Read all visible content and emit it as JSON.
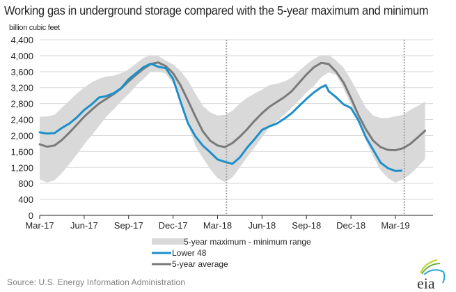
{
  "title": "Working gas in underground  storage compared with the 5-year maximum and minimum",
  "units_label": "billion cubic feet",
  "source": "Source:  U.S. Energy Information Administration",
  "logo_text": "eia",
  "colors": {
    "lower48": "#1d8fc9",
    "average": "#7a7a7a",
    "band": "#d9d9d9",
    "grid": "#d9d9d9",
    "divider": "#a6a6a6"
  },
  "chart_data": {
    "type": "line",
    "title": "Working gas in underground  storage compared with the 5-year maximum and minimum",
    "xlabel": "",
    "ylabel": "billion cubic feet",
    "ylim": [
      0,
      4400
    ],
    "yticks": [
      0,
      400,
      800,
      1200,
      1600,
      2000,
      2400,
      2800,
      3200,
      3600,
      4000,
      4400
    ],
    "ytick_labels": [
      "0",
      "400",
      "800",
      "1,200",
      "1,600",
      "2,000",
      "2,400",
      "2,800",
      "3,200",
      "3,600",
      "4,000",
      "4,400"
    ],
    "x_unit": "months since Mar-17",
    "xlim": [
      0,
      26.5
    ],
    "xticks": [
      0,
      3,
      6,
      9,
      12,
      15,
      18,
      21,
      24
    ],
    "xtick_labels": [
      "Mar-17",
      "Jun-17",
      "Sep-17",
      "Dec-17",
      "Mar-18",
      "Jun-18",
      "Sep-18",
      "Dec-18",
      "Mar-19"
    ],
    "grid": true,
    "legend_position": "bottom-center",
    "dividers": [
      12.6,
      24.6
    ],
    "band": {
      "name": "5-year maximum - minimum range",
      "x": [
        0,
        0.5,
        1,
        1.5,
        2,
        2.5,
        3,
        3.5,
        4,
        4.5,
        5,
        5.5,
        6,
        6.5,
        7,
        7.5,
        8,
        8.5,
        9,
        9.5,
        10,
        10.5,
        11,
        11.5,
        12,
        12.5,
        13,
        13.5,
        14,
        14.5,
        15,
        15.5,
        16,
        16.5,
        17,
        17.5,
        18,
        18.5,
        19,
        19.5,
        20,
        20.5,
        21,
        21.5,
        22,
        22.5,
        23,
        23.5,
        24,
        24.5,
        25,
        25.5,
        26
      ],
      "upper": [
        2470,
        2480,
        2520,
        2700,
        2870,
        3050,
        3200,
        3330,
        3420,
        3480,
        3500,
        3560,
        3660,
        3800,
        3940,
        4010,
        3990,
        3880,
        3780,
        3620,
        3380,
        3050,
        2750,
        2580,
        2500,
        2520,
        2620,
        2800,
        2950,
        3050,
        3150,
        3260,
        3300,
        3350,
        3450,
        3620,
        3780,
        3920,
        4010,
        4010,
        3880,
        3700,
        3400,
        3050,
        2700,
        2500,
        2440,
        2440,
        2480,
        2520,
        2640,
        2740,
        2850
      ],
      "lower": [
        900,
        820,
        880,
        1060,
        1280,
        1520,
        1780,
        2000,
        2240,
        2470,
        2660,
        2860,
        3040,
        3240,
        3420,
        3600,
        3610,
        3550,
        3300,
        2900,
        2300,
        1750,
        1440,
        1160,
        930,
        830,
        950,
        1200,
        1460,
        1700,
        1960,
        2200,
        2360,
        2520,
        2700,
        2880,
        3080,
        3240,
        3460,
        3580,
        3520,
        3180,
        2780,
        2320,
        1880,
        1470,
        1130,
        930,
        820,
        900,
        1030,
        1210,
        1410
      ]
    },
    "series": [
      {
        "name": "Lower 48",
        "x": [
          0,
          0.5,
          1,
          1.5,
          2,
          2.5,
          3,
          3.5,
          4,
          4.5,
          5,
          5.5,
          6,
          6.5,
          7,
          7.5,
          8,
          8.5,
          9,
          9.5,
          10,
          10.5,
          11,
          11.5,
          12,
          12.5,
          13,
          13.5,
          14,
          14.5,
          15,
          15.5,
          16,
          16.5,
          17,
          17.5,
          18,
          18.5,
          19,
          19.3,
          19.5,
          20,
          20.5,
          21,
          21.5,
          22,
          22.5,
          23,
          23.5,
          24,
          24.4
        ],
        "values": [
          2080,
          2050,
          2060,
          2190,
          2300,
          2450,
          2640,
          2780,
          2950,
          2990,
          3060,
          3190,
          3410,
          3560,
          3710,
          3800,
          3720,
          3690,
          3420,
          2850,
          2310,
          1980,
          1750,
          1580,
          1400,
          1340,
          1290,
          1450,
          1700,
          1910,
          2140,
          2230,
          2300,
          2420,
          2560,
          2740,
          2920,
          3080,
          3210,
          3260,
          3110,
          2960,
          2780,
          2690,
          2380,
          1960,
          1640,
          1320,
          1180,
          1110,
          1120
        ]
      },
      {
        "name": "5-year average",
        "x": [
          0,
          0.5,
          1,
          1.5,
          2,
          2.5,
          3,
          3.5,
          4,
          4.5,
          5,
          5.5,
          6,
          6.5,
          7,
          7.5,
          8,
          8.5,
          9,
          9.5,
          10,
          10.5,
          11,
          11.5,
          12,
          12.5,
          13,
          13.5,
          14,
          14.5,
          15,
          15.5,
          16,
          16.5,
          17,
          17.5,
          18,
          18.5,
          19,
          19.5,
          20,
          20.5,
          21,
          21.5,
          22,
          22.5,
          23,
          23.5,
          24,
          24.5,
          25,
          25.5,
          26
        ],
        "values": [
          1780,
          1720,
          1750,
          1890,
          2070,
          2270,
          2470,
          2640,
          2800,
          2920,
          3040,
          3180,
          3360,
          3520,
          3670,
          3790,
          3830,
          3740,
          3560,
          3260,
          2880,
          2480,
          2110,
          1870,
          1750,
          1710,
          1810,
          1970,
          2160,
          2370,
          2560,
          2720,
          2840,
          2960,
          3110,
          3320,
          3530,
          3710,
          3820,
          3790,
          3600,
          3330,
          2940,
          2510,
          2160,
          1870,
          1710,
          1640,
          1630,
          1680,
          1790,
          1950,
          2120
        ]
      }
    ]
  },
  "legend": [
    {
      "label": "5-year maximum - minimum range",
      "kind": "band"
    },
    {
      "label": "Lower 48",
      "kind": "lower48"
    },
    {
      "label": "5-year average",
      "kind": "average"
    }
  ]
}
